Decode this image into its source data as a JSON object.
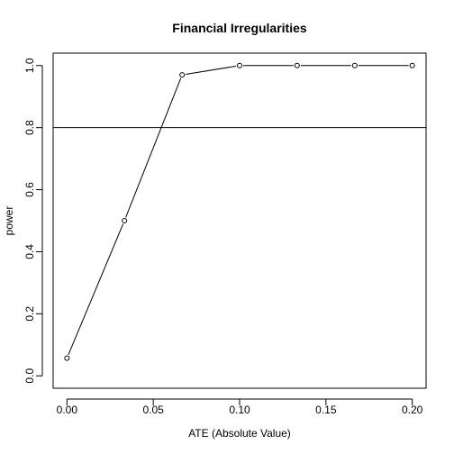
{
  "chart_data": {
    "type": "line",
    "title": "Financial Irregularities",
    "xlabel": "ATE (Absolute Value)",
    "ylabel": "power",
    "xlim": [
      -0.008,
      0.208
    ],
    "ylim": [
      -0.04,
      1.04
    ],
    "x_ticks": [
      0.0,
      0.05,
      0.1,
      0.15,
      0.2
    ],
    "x_tick_labels": [
      "0.00",
      "0.05",
      "0.10",
      "0.15",
      "0.20"
    ],
    "y_ticks": [
      0.0,
      0.2,
      0.4,
      0.6,
      0.8,
      1.0
    ],
    "y_tick_labels": [
      "0.0",
      "0.2",
      "0.4",
      "0.6",
      "0.8",
      "1.0"
    ],
    "reference_line_y": 0.8,
    "grid": false,
    "series": [
      {
        "x": [
          0.0,
          0.0333,
          0.0667,
          0.1,
          0.1333,
          0.1667,
          0.2
        ],
        "y": [
          0.057,
          0.5,
          0.97,
          1.0,
          1.0,
          1.0,
          1.0
        ]
      }
    ],
    "colors": {
      "line": "#000000",
      "marker_fill": "#ffffff",
      "background": "#ffffff"
    }
  }
}
